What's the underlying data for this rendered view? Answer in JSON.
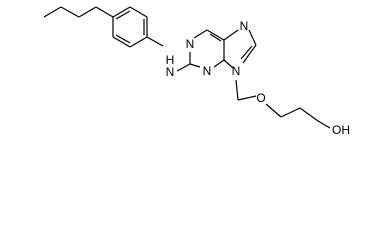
{
  "atoms": [
    {
      "label": "N"
    },
    {
      "label": "H"
    },
    {
      "label": "N"
    },
    {
      "label": "N"
    },
    {
      "label": "N"
    },
    {
      "label": "N"
    },
    {
      "label": "O"
    },
    {
      "label": "OH"
    }
  ]
}
